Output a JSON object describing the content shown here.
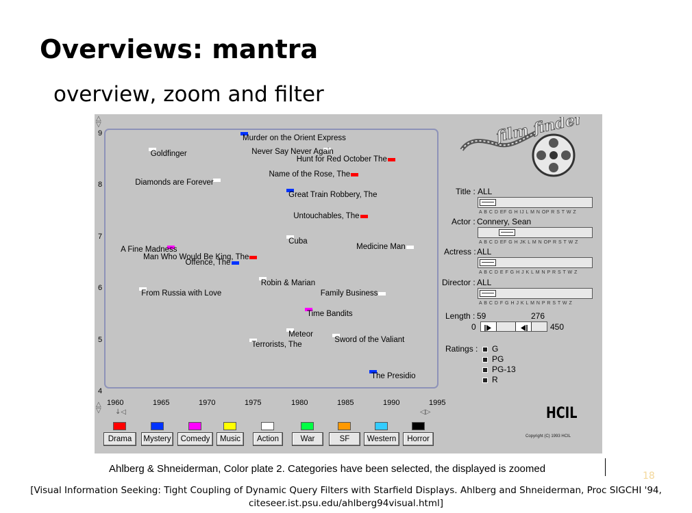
{
  "slide": {
    "title": "Overviews: mantra",
    "subtitle": "overview, zoom and filter",
    "page_number": "18"
  },
  "filmfinder": {
    "logo_text": "film finder",
    "y_ticks": [
      "9",
      "8",
      "7",
      "6",
      "5",
      "4"
    ],
    "x_ticks": [
      "1960",
      "1965",
      "1970",
      "1975",
      "1980",
      "1985",
      "1990",
      "1995"
    ],
    "movies": [
      {
        "title": "Murder on the Orient Express",
        "year": 1974,
        "rating": 9.0,
        "genre": "Mystery"
      },
      {
        "title": "Goldfinger",
        "year": 1964,
        "rating": 8.7,
        "genre": "Action"
      },
      {
        "title": "Never Say Never Again",
        "year": 1983,
        "rating": 8.7,
        "genre": "Action"
      },
      {
        "title": "Hunt for Red October  The",
        "year": 1990,
        "rating": 8.5,
        "genre": "Drama"
      },
      {
        "title": "Name of the Rose, The",
        "year": 1986,
        "rating": 8.2,
        "genre": "Drama"
      },
      {
        "title": "Diamonds are Forever",
        "year": 1971,
        "rating": 8.1,
        "genre": "Action"
      },
      {
        "title": "Great Train Robbery, The",
        "year": 1979,
        "rating": 7.9,
        "genre": "Mystery"
      },
      {
        "title": "Untouchables, The",
        "year": 1987,
        "rating": 7.4,
        "genre": "Drama"
      },
      {
        "title": "Cuba",
        "year": 1979,
        "rating": 7.0,
        "genre": "Action"
      },
      {
        "title": "A Fine Madness",
        "year": 1966,
        "rating": 6.8,
        "genre": "Comedy"
      },
      {
        "title": "Man Who Would Be King, The",
        "year": 1975,
        "rating": 6.6,
        "genre": "Drama"
      },
      {
        "title": "Medicine Man",
        "year": 1992,
        "rating": 6.8,
        "genre": "Action"
      },
      {
        "title": "Offence, The",
        "year": 1973,
        "rating": 6.5,
        "genre": "Mystery"
      },
      {
        "title": "Robin & Marian",
        "year": 1976,
        "rating": 6.2,
        "genre": "Action"
      },
      {
        "title": "From Russia with Love",
        "year": 1963,
        "rating": 6.0,
        "genre": "Action"
      },
      {
        "title": "Family Business",
        "year": 1989,
        "rating": 5.9,
        "genre": "Action"
      },
      {
        "title": "Time Bandits",
        "year": 1981,
        "rating": 5.6,
        "genre": "Comedy"
      },
      {
        "title": "Meteor",
        "year": 1979,
        "rating": 5.2,
        "genre": "Action"
      },
      {
        "title": "Sword of the Valiant",
        "year": 1984,
        "rating": 5.1,
        "genre": "Action"
      },
      {
        "title": "Terrorists, The",
        "year": 1975,
        "rating": 5.0,
        "genre": "Action"
      },
      {
        "title": "The Presidio",
        "year": 1988,
        "rating": 4.4,
        "genre": "Mystery"
      }
    ],
    "genres": [
      {
        "label": "Drama",
        "color": "#ff0000"
      },
      {
        "label": "Mystery",
        "color": "#0033ff"
      },
      {
        "label": "Comedy",
        "color": "#ff00ff"
      },
      {
        "label": "Music",
        "color": "#ffff00"
      },
      {
        "label": "Action",
        "color": "#ffffff"
      },
      {
        "label": "War",
        "color": "#00ff44"
      },
      {
        "label": "SF",
        "color": "#ff9900"
      },
      {
        "label": "Western",
        "color": "#33ccff"
      },
      {
        "label": "Horror",
        "color": "#000000"
      }
    ],
    "filters": {
      "title": {
        "label": "Title :",
        "value": "ALL"
      },
      "actor": {
        "label": "Actor :",
        "value": "Connery, Sean"
      },
      "actress": {
        "label": "Actress :",
        "value": "ALL"
      },
      "director": {
        "label": "Director :",
        "value": "ALL"
      },
      "alphabet_1": "A  B  C  D EF G H IJ L M  N OP R S   T  W Z",
      "alphabet_2": "A B   C  D EF G H  JK L M    N OP R S  T W Z",
      "alphabet_3": "A  B    C  D  E F G H  J K L  M    N P  R S   T W Z",
      "alphabet_4": "A B   C  D F G H  J K L  M    N P R  S   T W Z",
      "length": {
        "label": "Length :",
        "min_value": "59",
        "max_value": "276",
        "range_min": "0",
        "range_max": "450"
      },
      "ratings": {
        "label": "Ratings :",
        "options": [
          "G",
          "PG",
          "PG-13",
          "R"
        ]
      }
    },
    "hcil_logo": "HCIL",
    "copyright": "Copyright (C) 1993 HCIL"
  },
  "caption": "Ahlberg & Shneiderman, Color plate 2. Categories have been selected, the displayed is zoomed",
  "citation": {
    "line1": "[Visual Information Seeking: Tight Coupling of Dynamic Query Filters with Starfield Displays. Ahlberg and Shneiderman, Proc SIGCHI '94,",
    "line2": "citeseer.ist.psu.edu/ahlberg94visual.html]"
  }
}
